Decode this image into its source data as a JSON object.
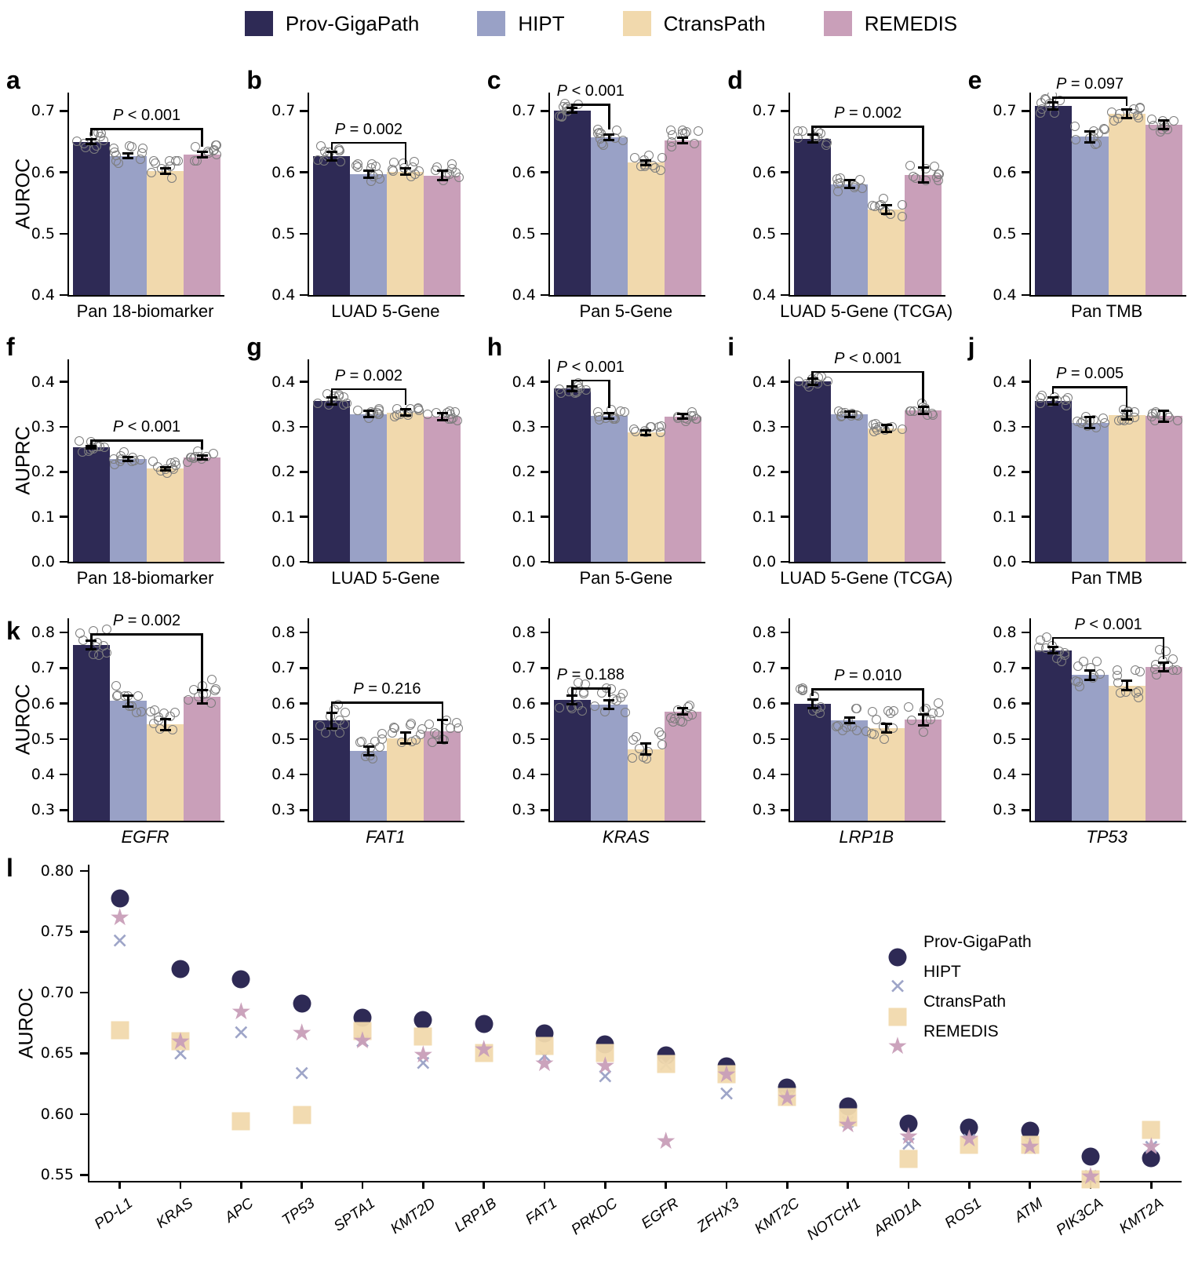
{
  "colors": {
    "prov": "#2e2a55",
    "hipt": "#99a1c6",
    "ctrans": "#f1d9ad",
    "remedis": "#c99fb9",
    "axis": "#000000",
    "jitter": "#7d7d7d"
  },
  "legend": {
    "items": [
      {
        "label": "Prov-GigaPath",
        "color": "prov",
        "marker": "circle"
      },
      {
        "label": "HIPT",
        "color": "hipt",
        "marker": "x"
      },
      {
        "label": "CtransPath",
        "color": "ctrans",
        "marker": "square"
      },
      {
        "label": "REMEDIS",
        "color": "remedis",
        "marker": "star"
      }
    ]
  },
  "chart_data": {
    "type": "multi-panel",
    "models": [
      "Prov-GigaPath",
      "HIPT",
      "CtransPath",
      "REMEDIS"
    ],
    "bar_rows": [
      {
        "ylabel": "AUROC",
        "ylim": [
          0.4,
          0.73
        ],
        "yticks": [
          0.4,
          0.5,
          0.6,
          0.7
        ],
        "decimals": 1,
        "jitter_spread": 0.032,
        "italic_xlabels": false,
        "panels": [
          {
            "letter": "a",
            "xlabel": "Pan 18-biomarker",
            "values": [
              0.65,
              0.627,
              0.602,
              0.629
            ],
            "errors": [
              0.004,
              0.004,
              0.004,
              0.005
            ],
            "p": {
              "label": "P < 0.001",
              "from": 0,
              "to": 3,
              "y": 0.672
            }
          },
          {
            "letter": "b",
            "xlabel": "LUAD 5-Gene",
            "values": [
              0.627,
              0.597,
              0.601,
              0.595
            ],
            "errors": [
              0.007,
              0.006,
              0.005,
              0.008
            ],
            "p": {
              "label": "P = 0.002",
              "from": 0,
              "to": 2,
              "y": 0.65
            }
          },
          {
            "letter": "c",
            "xlabel": "Pan 5-Gene",
            "values": [
              0.701,
              0.657,
              0.616,
              0.652
            ],
            "errors": [
              0.004,
              0.005,
              0.004,
              0.004
            ],
            "p": {
              "label": "P < 0.001",
              "from": 0,
              "to": 1,
              "y": 0.712
            }
          },
          {
            "letter": "d",
            "xlabel": "LUAD 5-Gene (TCGA)",
            "values": [
              0.655,
              0.581,
              0.539,
              0.596
            ],
            "errors": [
              0.006,
              0.006,
              0.007,
              0.012
            ],
            "p": {
              "label": "P = 0.002",
              "from": 0,
              "to": 3,
              "y": 0.676
            }
          },
          {
            "letter": "e",
            "xlabel": "Pan TMB",
            "values": [
              0.708,
              0.658,
              0.695,
              0.678
            ],
            "errors": [
              0.006,
              0.009,
              0.007,
              0.007
            ],
            "p": {
              "label": "P = 0.097",
              "from": 0,
              "to": 2,
              "y": 0.723
            }
          }
        ]
      },
      {
        "ylabel": "AUPRC",
        "ylim": [
          0.0,
          0.45
        ],
        "yticks": [
          0.0,
          0.1,
          0.2,
          0.3,
          0.4
        ],
        "decimals": 1,
        "jitter_spread": 0.028,
        "italic_xlabels": false,
        "panels": [
          {
            "letter": "f",
            "xlabel": "Pan 18-biomarker",
            "values": [
              0.255,
              0.228,
              0.207,
              0.232
            ],
            "errors": [
              0.003,
              0.004,
              0.004,
              0.005
            ],
            "p": {
              "label": "P < 0.001",
              "from": 0,
              "to": 3,
              "y": 0.272
            }
          },
          {
            "letter": "g",
            "xlabel": "LUAD 5-Gene",
            "values": [
              0.357,
              0.328,
              0.332,
              0.322
            ],
            "errors": [
              0.008,
              0.007,
              0.007,
              0.008
            ],
            "p": {
              "label": "P = 0.002",
              "from": 0,
              "to": 2,
              "y": 0.386
            }
          },
          {
            "letter": "h",
            "xlabel": "Pan 5-Gene",
            "values": [
              0.385,
              0.324,
              0.287,
              0.323
            ],
            "errors": [
              0.005,
              0.006,
              0.005,
              0.005
            ],
            "p": {
              "label": "P < 0.001",
              "from": 0,
              "to": 1,
              "y": 0.405
            }
          },
          {
            "letter": "i",
            "xlabel": "LUAD 5-Gene (TCGA)",
            "values": [
              0.401,
              0.328,
              0.296,
              0.337
            ],
            "errors": [
              0.007,
              0.006,
              0.008,
              0.008
            ],
            "p": {
              "label": "P < 0.001",
              "from": 0,
              "to": 3,
              "y": 0.424
            }
          },
          {
            "letter": "j",
            "xlabel": "Pan TMB",
            "values": [
              0.357,
              0.309,
              0.326,
              0.324
            ],
            "errors": [
              0.008,
              0.012,
              0.01,
              0.012
            ],
            "p": {
              "label": "P = 0.005",
              "from": 0,
              "to": 2,
              "y": 0.39
            }
          }
        ]
      },
      {
        "ylabel": "AUROC",
        "ylim": [
          0.27,
          0.84
        ],
        "yticks": [
          0.3,
          0.4,
          0.5,
          0.6,
          0.7,
          0.8
        ],
        "decimals": 1,
        "jitter_spread": 0.085,
        "italic_xlabels": true,
        "panels": [
          {
            "letter": "k",
            "xlabel": "EGFR",
            "values": [
              0.765,
              0.607,
              0.541,
              0.619
            ],
            "errors": [
              0.012,
              0.015,
              0.015,
              0.018
            ],
            "p": {
              "label": "P = 0.002",
              "from": 0,
              "to": 3,
              "y": 0.798
            }
          },
          {
            "letter": "",
            "xlabel": "FAT1",
            "values": [
              0.552,
              0.466,
              0.503,
              0.522
            ],
            "errors": [
              0.022,
              0.012,
              0.016,
              0.032
            ],
            "p": {
              "label": "P = 0.216",
              "from": 0,
              "to": 3,
              "y": 0.605
            }
          },
          {
            "letter": "",
            "xlabel": "KRAS",
            "values": [
              0.61,
              0.597,
              0.472,
              0.578
            ],
            "errors": [
              0.013,
              0.012,
              0.016,
              0.008
            ],
            "p": {
              "label": "P = 0.188",
              "from": 0,
              "to": 1,
              "y": 0.645
            }
          },
          {
            "letter": "",
            "xlabel": "LRP1B",
            "values": [
              0.599,
              0.553,
              0.53,
              0.554
            ],
            "errors": [
              0.013,
              0.008,
              0.012,
              0.015
            ],
            "p": {
              "label": "P = 0.010",
              "from": 0,
              "to": 3,
              "y": 0.643
            }
          },
          {
            "letter": "",
            "xlabel": "TP53",
            "values": [
              0.75,
              0.68,
              0.651,
              0.703
            ],
            "errors": [
              0.009,
              0.013,
              0.014,
              0.012
            ],
            "p": {
              "label": "P < 0.001",
              "from": 0,
              "to": 3,
              "y": 0.788
            }
          }
        ]
      }
    ],
    "scatter": {
      "letter": "l",
      "ylabel": "AUROC",
      "ylim": [
        0.545,
        0.805
      ],
      "yticks": [
        0.55,
        0.6,
        0.65,
        0.7,
        0.75,
        0.8
      ],
      "decimals": 2,
      "genes": [
        "PD-L1",
        "KRAS",
        "APC",
        "TP53",
        "SPTA1",
        "KMT2D",
        "LRP1B",
        "FAT1",
        "PRKDC",
        "EGFR",
        "ZFHX3",
        "KMT2C",
        "NOTCH1",
        "ARID1A",
        "ROS1",
        "ATM",
        "PIK3CA",
        "KMT2A"
      ],
      "series": [
        {
          "name": "Prov-GigaPath",
          "marker": "circle",
          "color": "prov",
          "values": [
            0.777,
            0.719,
            0.711,
            0.691,
            0.679,
            0.677,
            0.674,
            0.666,
            0.657,
            0.648,
            0.639,
            0.622,
            0.606,
            0.592,
            0.589,
            0.586,
            0.565,
            0.564
          ]
        },
        {
          "name": "HIPT",
          "marker": "x",
          "color": "hipt",
          "values": [
            0.742,
            0.649,
            0.666,
            0.633,
            0.659,
            0.641,
            0.651,
            0.647,
            0.63,
            0.64,
            0.616,
            0.613,
            0.593,
            0.575,
            0.578,
            0.574,
            0.548,
            0.572
          ]
        },
        {
          "name": "CtransPath",
          "marker": "square",
          "color": "ctrans",
          "values": [
            0.669,
            0.66,
            0.594,
            0.599,
            0.668,
            0.664,
            0.65,
            0.656,
            0.65,
            0.641,
            0.633,
            0.614,
            0.597,
            0.563,
            0.575,
            0.575,
            0.546,
            0.587
          ]
        },
        {
          "name": "REMEDIS",
          "marker": "star",
          "color": "remedis",
          "values": [
            0.761,
            0.659,
            0.684,
            0.666,
            0.66,
            0.648,
            0.653,
            0.641,
            0.639,
            0.577,
            0.632,
            0.613,
            0.591,
            0.581,
            0.579,
            0.573,
            0.548,
            0.573
          ]
        }
      ]
    }
  }
}
